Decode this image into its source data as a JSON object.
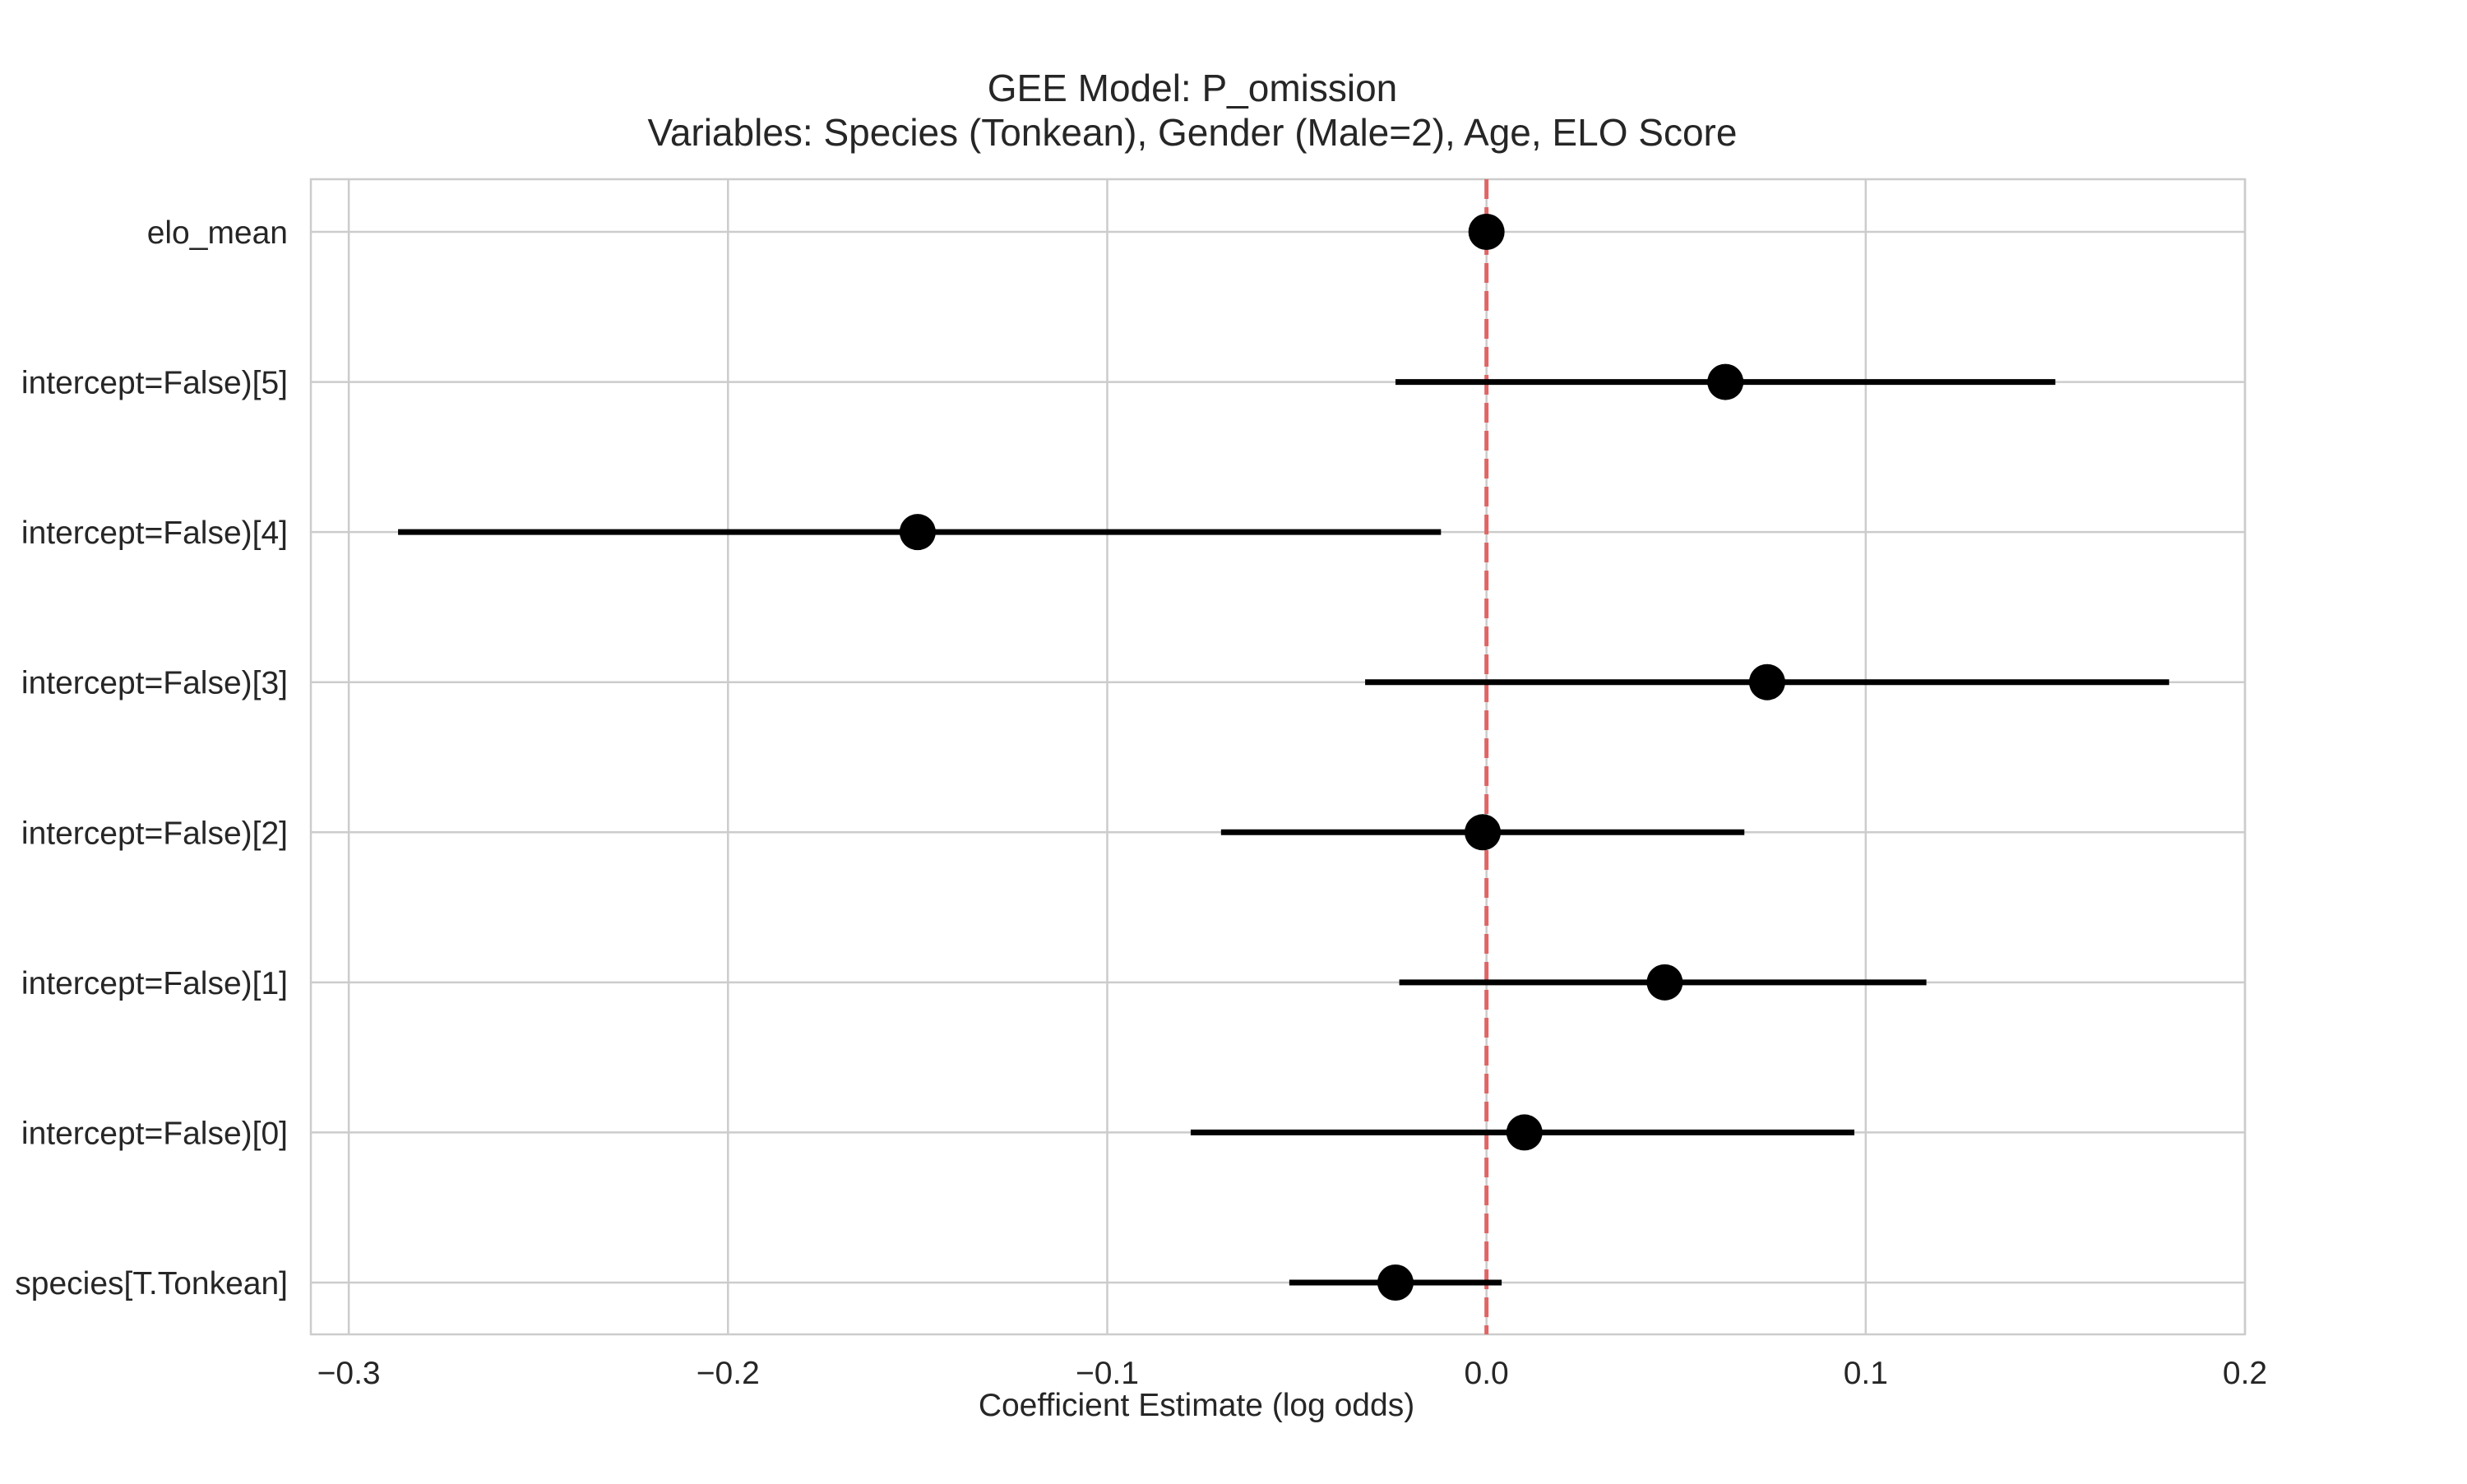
{
  "chart_data": {
    "type": "forest",
    "title": "GEE Model: P_omission",
    "subtitle": "Variables: Species (Tonkean), Gender (Male=2), Age, ELO Score",
    "xlabel": "Coefficient Estimate (log odds)",
    "ylabel": "",
    "xlim": [
      -0.31,
      0.2
    ],
    "xticks": [
      -0.3,
      -0.2,
      -0.1,
      0.0,
      0.1,
      0.2
    ],
    "xtick_labels": [
      "−0.3",
      "−0.2",
      "−0.1",
      "0.0",
      "0.1",
      "0.2"
    ],
    "grid": true,
    "reference_line": {
      "x": 0.0,
      "color": "#e06666",
      "style": "dashed"
    },
    "marker_color": "#000000",
    "grid_color": "#cccccc",
    "terms": [
      {
        "label": "elo_mean",
        "estimate": 0.0,
        "ci_low": 0.0,
        "ci_high": 0.0
      },
      {
        "label": "intercept=False)[5]",
        "estimate": 0.063,
        "ci_low": -0.024,
        "ci_high": 0.15
      },
      {
        "label": "intercept=False)[4]",
        "estimate": -0.15,
        "ci_low": -0.287,
        "ci_high": -0.012
      },
      {
        "label": "intercept=False)[3]",
        "estimate": 0.074,
        "ci_low": -0.032,
        "ci_high": 0.18
      },
      {
        "label": "intercept=False)[2]",
        "estimate": -0.001,
        "ci_low": -0.07,
        "ci_high": 0.068
      },
      {
        "label": "intercept=False)[1]",
        "estimate": 0.047,
        "ci_low": -0.023,
        "ci_high": 0.116
      },
      {
        "label": "intercept=False)[0]",
        "estimate": 0.01,
        "ci_low": -0.078,
        "ci_high": 0.097
      },
      {
        "label": "species[T.Tonkean]",
        "estimate": -0.024,
        "ci_low": -0.052,
        "ci_high": 0.004
      }
    ]
  }
}
